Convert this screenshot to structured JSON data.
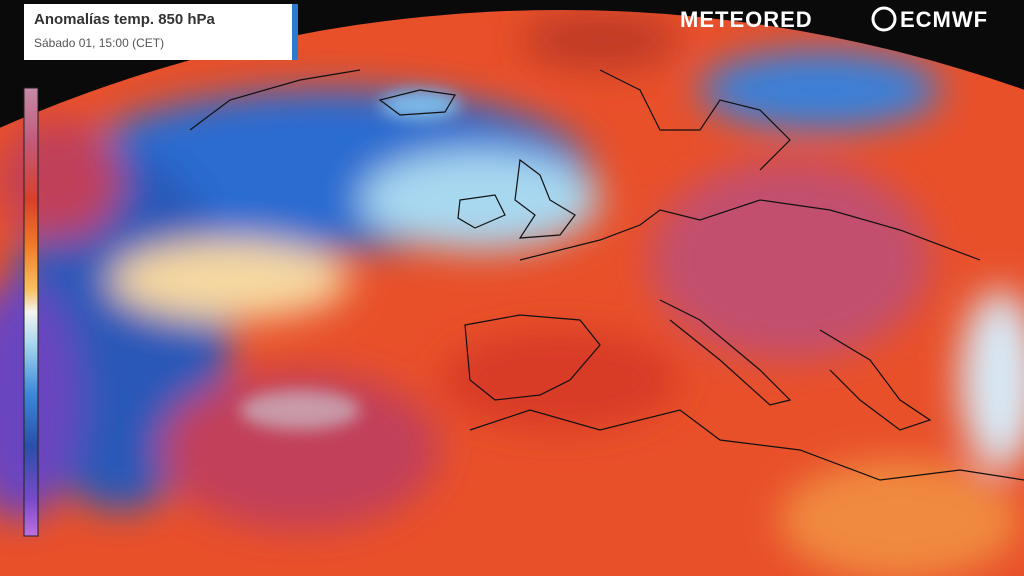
{
  "header": {
    "title": "Anomalías temp. 850 hPa",
    "subtitle": "Sábado 01, 15:00 (CET)"
  },
  "logos": {
    "meteored": "METEORED",
    "ecmwf": "ECMWF"
  }
}
